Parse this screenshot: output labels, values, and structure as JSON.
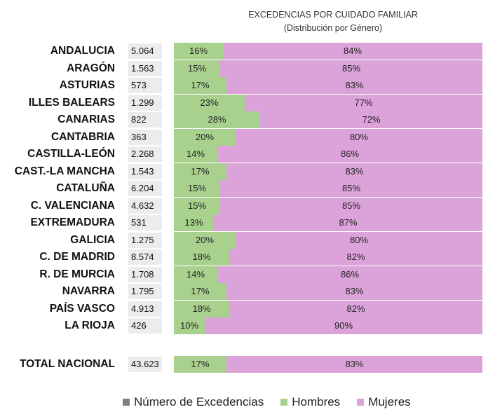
{
  "chart_data": {
    "type": "bar",
    "title": "EXCEDENCIAS POR CUIDADO FAMILIAR",
    "subtitle": "(Distribución por Género)",
    "categories": [
      "ANDALUCIA",
      "ARAGÓN",
      "ASTURIAS",
      "ILLES BALEARS",
      "CANARIAS",
      "CANTABRIA",
      "CASTILLA-LEÓN",
      "CAST.-LA MANCHA",
      "CATALUÑA",
      "C. VALENCIANA",
      "EXTREMADURA",
      "GALICIA",
      "C. DE MADRID",
      "R. DE MURCIA",
      "NAVARRA",
      "PAÍS VASCO",
      "LA RIOJA"
    ],
    "counts": [
      "5.064",
      "1.563",
      "573",
      "1.299",
      "822",
      "363",
      "2.268",
      "1.543",
      "6.204",
      "4.632",
      "531",
      "1.275",
      "8.574",
      "1.708",
      "1.795",
      "4.913",
      "426"
    ],
    "series": [
      {
        "name": "Hombres",
        "color": "#a9d18e",
        "values": [
          16,
          15,
          17,
          23,
          28,
          20,
          14,
          17,
          15,
          15,
          13,
          20,
          18,
          14,
          17,
          18,
          10
        ]
      },
      {
        "name": "Mujeres",
        "color": "#dca3da",
        "values": [
          84,
          85,
          83,
          77,
          72,
          80,
          86,
          83,
          85,
          85,
          87,
          80,
          82,
          86,
          83,
          82,
          90
        ]
      }
    ],
    "total": {
      "label": "TOTAL NACIONAL",
      "count": "43.623",
      "hombres": 17,
      "mujeres": 83
    },
    "legend": [
      {
        "label": "Número de Excedencias",
        "color": "#7f7f7f"
      },
      {
        "label": "Hombres",
        "color": "#a9d18e"
      },
      {
        "label": "Mujeres",
        "color": "#dca3da"
      }
    ],
    "legend_position": "bottom",
    "stacked": true,
    "percent_stacked": true
  }
}
